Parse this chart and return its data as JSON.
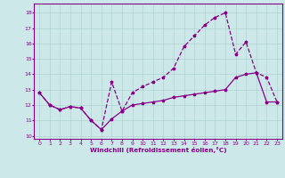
{
  "background_color": "#cce8e8",
  "line_color": "#880088",
  "xlim": [
    -0.5,
    23.5
  ],
  "ylim": [
    9.8,
    18.6
  ],
  "yticks": [
    10,
    11,
    12,
    13,
    14,
    15,
    16,
    17,
    18
  ],
  "xticks": [
    0,
    1,
    2,
    3,
    4,
    5,
    6,
    7,
    8,
    9,
    10,
    11,
    12,
    13,
    14,
    15,
    16,
    17,
    18,
    19,
    20,
    21,
    22,
    23
  ],
  "xlabel": "Windchill (Refroidissement éolien,°C)",
  "series_solid_x": [
    0,
    1,
    2,
    3,
    4,
    5,
    6,
    7,
    8,
    9,
    10,
    11,
    12,
    13,
    14,
    15,
    16,
    17,
    18,
    19,
    20,
    21,
    22,
    23
  ],
  "series_solid_y": [
    12.8,
    12.0,
    11.7,
    11.9,
    11.8,
    11.0,
    10.4,
    11.1,
    11.6,
    12.0,
    12.1,
    12.2,
    12.3,
    12.5,
    12.6,
    12.7,
    12.8,
    12.9,
    13.0,
    13.8,
    14.0,
    14.1,
    12.2,
    12.2
  ],
  "series_dashed_x": [
    0,
    1,
    2,
    3,
    4,
    5,
    6,
    7,
    8,
    9,
    10,
    11,
    12,
    13,
    14,
    15,
    16,
    17,
    18,
    19,
    20,
    21,
    22,
    23
  ],
  "series_dashed_y": [
    12.8,
    12.0,
    11.7,
    11.9,
    11.8,
    11.0,
    10.4,
    13.5,
    11.6,
    12.8,
    13.2,
    13.5,
    13.8,
    14.4,
    15.8,
    16.5,
    17.2,
    17.7,
    18.0,
    15.3,
    16.1,
    14.1,
    13.8,
    12.2
  ]
}
